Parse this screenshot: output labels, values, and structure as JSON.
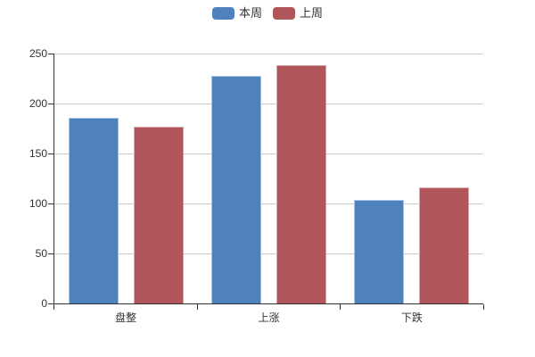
{
  "colors": {
    "background": "#ffffff",
    "axis": "#333333",
    "grid": "#cccccc",
    "text": "#333333"
  },
  "chart_data": {
    "type": "bar",
    "title": "",
    "xlabel": "",
    "ylabel": "",
    "categories": [
      "盘整",
      "上涨",
      "下跌"
    ],
    "series": [
      {
        "name": "本周",
        "color": "#4e81bd",
        "border_color": "#a9c2e0",
        "values": [
          186,
          228,
          104
        ]
      },
      {
        "name": "上周",
        "color": "#b0555a",
        "border_color": "#d6a3a7",
        "values": [
          177,
          238,
          116
        ]
      }
    ],
    "ylim": [
      0,
      250
    ],
    "y_ticks": [
      "0",
      "50",
      "100",
      "150",
      "200",
      "250"
    ],
    "grid": true,
    "legend_position": "top-center",
    "legend_labels": [
      "本周",
      "上周"
    ]
  }
}
